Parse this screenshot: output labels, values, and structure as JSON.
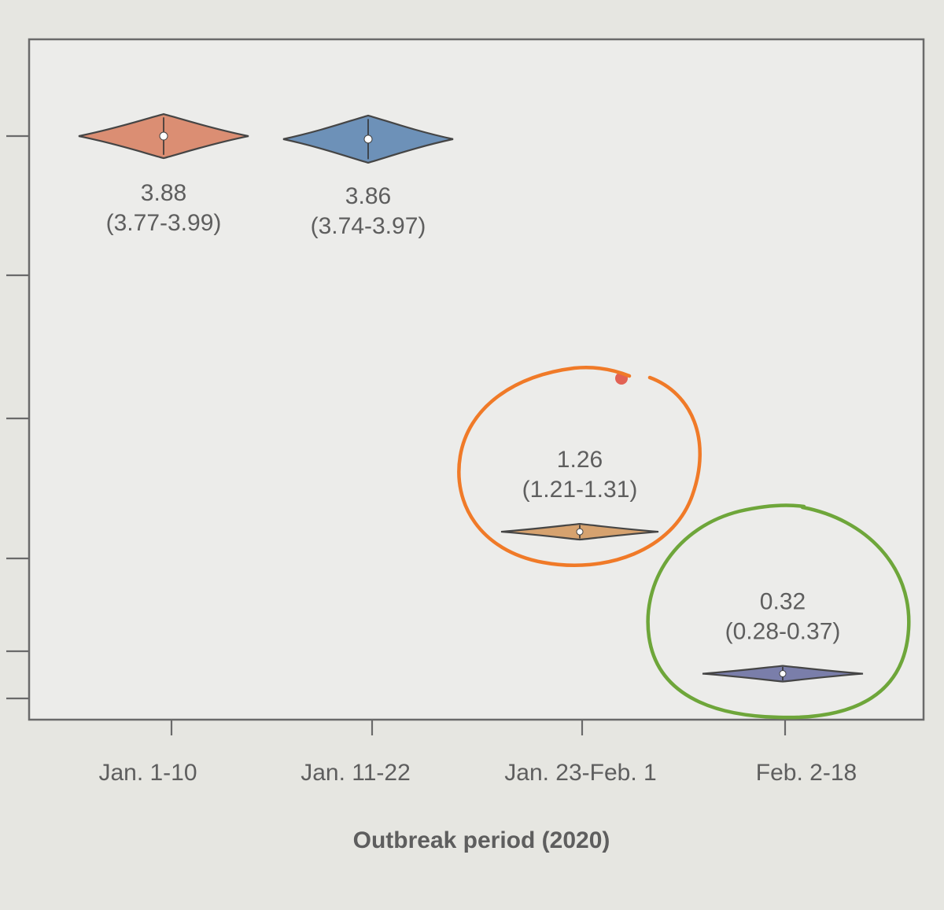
{
  "chart_data": {
    "type": "violin",
    "title": "",
    "xlabel": "Outbreak period (2020)",
    "ylabel": "",
    "categories": [
      "Jan. 1-10",
      "Jan. 11-22",
      "Jan. 23-Feb. 1",
      "Feb. 2-18"
    ],
    "series": [
      {
        "category": "Jan. 1-10",
        "value": 3.88,
        "ci": [
          3.77,
          3.99
        ],
        "median_label": "3.88",
        "ci_label": "(3.77-3.99)",
        "color": "#d98466"
      },
      {
        "category": "Jan. 11-22",
        "value": 3.86,
        "ci": [
          3.74,
          3.97
        ],
        "median_label": "3.86",
        "ci_label": "(3.74-3.97)",
        "color": "#5f87b2"
      },
      {
        "category": "Jan. 23-Feb. 1",
        "value": 1.26,
        "ci": [
          1.21,
          1.31
        ],
        "median_label": "1.26",
        "ci_label": "(1.21-1.31)",
        "color": "#d49a62"
      },
      {
        "category": "Feb. 2-18",
        "value": 0.32,
        "ci": [
          0.28,
          0.37
        ],
        "median_label": "0.32",
        "ci_label": "(0.28-0.37)",
        "color": "#6e72a3"
      }
    ],
    "ylim": [
      0,
      4.5
    ],
    "grid": false,
    "legend": "none",
    "annotations": [
      {
        "type": "hand-drawn-circle",
        "around": "Jan. 23-Feb. 1",
        "color": "#f07a28"
      },
      {
        "type": "hand-drawn-circle",
        "around": "Feb. 2-18",
        "color": "#6ea63a"
      }
    ]
  }
}
